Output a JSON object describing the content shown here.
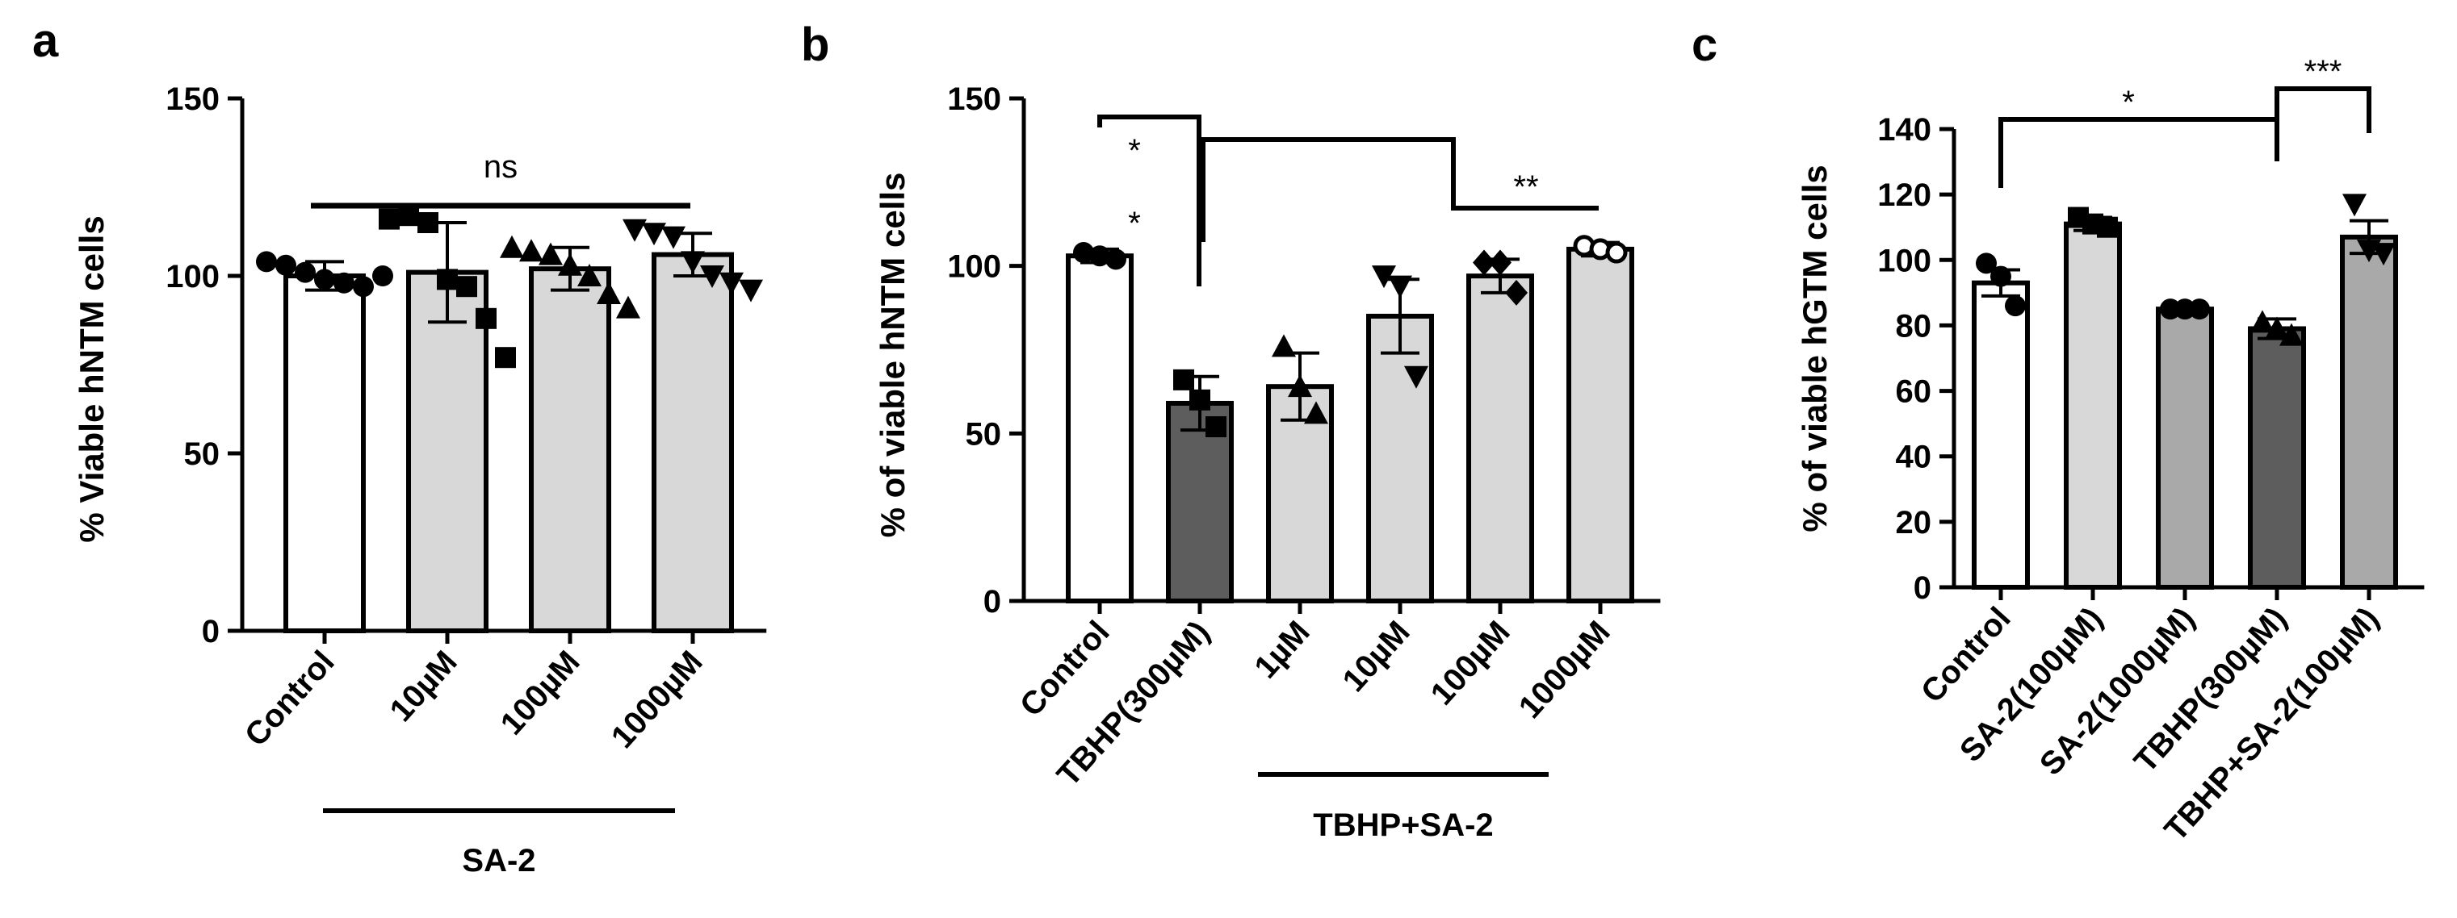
{
  "chart_data": [
    {
      "type": "bar",
      "panel_label": "a",
      "ylabel": "% Viable hNTM cells",
      "ylim": [
        0,
        150
      ],
      "yticks": [
        "0",
        "50",
        "100",
        "150"
      ],
      "categories": [
        "Control",
        "10µM",
        "100µM",
        "1000µM"
      ],
      "values": [
        100,
        101,
        102,
        106
      ],
      "errors": [
        4,
        14,
        6,
        6
      ],
      "bar_colors": [
        "#ffffff",
        "#d8d8d8",
        "#d8d8d8",
        "#d8d8d8"
      ],
      "point_markers": [
        "circle",
        "square",
        "triangle-up",
        "triangle-down"
      ],
      "points": [
        [
          104,
          103,
          101,
          99,
          98,
          97,
          100
        ],
        [
          116,
          117,
          115,
          99,
          97,
          88,
          77
        ],
        [
          108,
          107,
          106,
          103,
          100,
          95,
          91
        ],
        [
          113,
          112,
          111,
          104,
          100,
          98,
          96
        ]
      ],
      "group_label": "SA-2",
      "annotations": [
        {
          "text": "ns",
          "from": 0,
          "to": 3
        }
      ]
    },
    {
      "type": "bar",
      "panel_label": "b",
      "ylabel": "% of viable hNTM cells",
      "ylim": [
        0,
        150
      ],
      "yticks": [
        "0",
        "50",
        "100",
        "150"
      ],
      "categories": [
        "Control",
        "TBHP(300µM)",
        "1µM",
        "10µM",
        "100µM",
        "1000µM"
      ],
      "values": [
        103,
        59,
        64,
        85,
        97,
        105
      ],
      "errors": [
        2,
        8,
        10,
        11,
        5,
        2
      ],
      "bar_colors": [
        "#ffffff",
        "#5d5d5d",
        "#d8d8d8",
        "#d8d8d8",
        "#d8d8d8",
        "#d8d8d8"
      ],
      "point_markers": [
        "circle",
        "square",
        "triangle-up",
        "triangle-down",
        "diamond",
        "circle-open"
      ],
      "points": [
        [
          104,
          103,
          102
        ],
        [
          66,
          60,
          52
        ],
        [
          76,
          64,
          56
        ],
        [
          97,
          94,
          67
        ],
        [
          101,
          101,
          92
        ],
        [
          106,
          105,
          104
        ]
      ],
      "group_label": "TBHP+SA-2",
      "annotations": [
        {
          "text": "*",
          "from": 0,
          "to": 1
        },
        {
          "text": "*",
          "from": 0,
          "to": 1
        },
        {
          "text": "**",
          "from": 1,
          "to": 5
        }
      ]
    },
    {
      "type": "bar",
      "panel_label": "c",
      "ylabel": "% of viable hGTM cells",
      "ylim": [
        0,
        140
      ],
      "yticks": [
        "0",
        "20",
        "40",
        "60",
        "80",
        "100",
        "120",
        "140"
      ],
      "categories": [
        "Control",
        "SA-2(100µM)",
        "SA-2(1000µM)",
        "TBHP(300µM)",
        "TBHP+SA-2(100µM)"
      ],
      "values": [
        93,
        111,
        85,
        79,
        107
      ],
      "errors": [
        4,
        2,
        1,
        3,
        5
      ],
      "bar_colors": [
        "#ffffff",
        "#d8d8d8",
        "#a9a9a9",
        "#5d5d5d",
        "#a9a9a9"
      ],
      "point_markers": [
        "circle",
        "square",
        "circle",
        "triangle-up",
        "triangle-down"
      ],
      "points": [
        [
          99,
          95,
          86
        ],
        [
          113,
          111,
          110
        ],
        [
          85,
          85,
          85
        ],
        [
          81,
          79,
          77
        ],
        [
          117,
          103,
          102
        ]
      ],
      "annotations": [
        {
          "text": "*",
          "from": 0,
          "to": 3
        },
        {
          "text": "***",
          "from": 3,
          "to": 4
        }
      ]
    }
  ]
}
